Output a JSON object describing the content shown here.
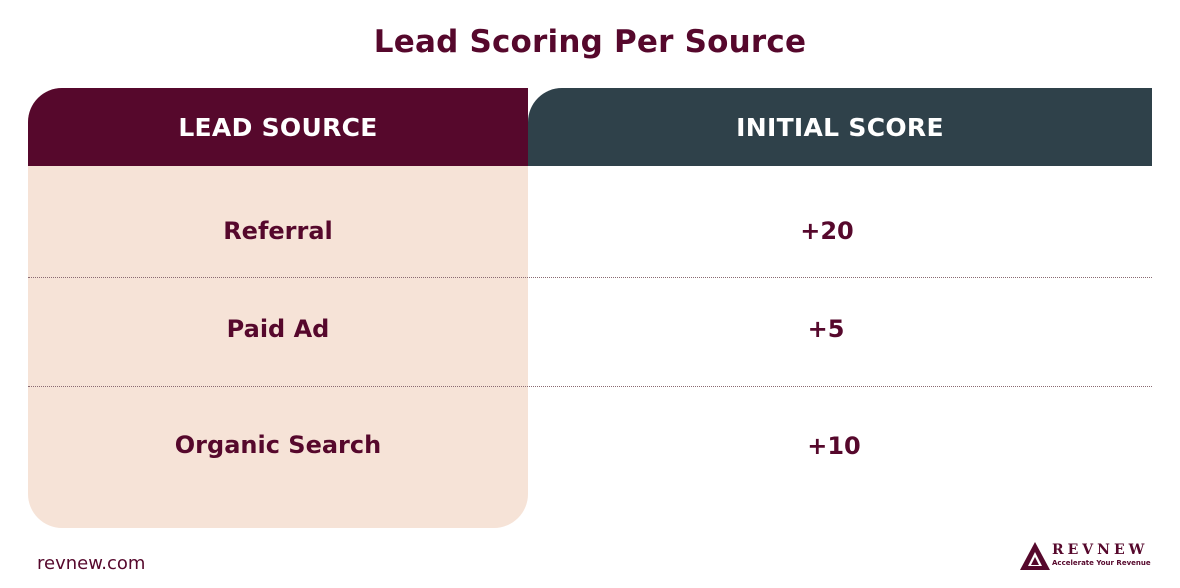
{
  "title": "Lead Scoring Per Source",
  "table": {
    "headers": {
      "source": "LEAD SOURCE",
      "score": "INITIAL SCORE"
    },
    "rows": [
      {
        "source": "Referral",
        "score": "+20"
      },
      {
        "source": "Paid Ad",
        "score": "+5"
      },
      {
        "source": "Organic Search",
        "score": "+10"
      }
    ]
  },
  "footer": {
    "url": "revnew.com",
    "logo_name": "REVNEW",
    "logo_tagline": "Accelerate Your Revenue",
    "logo_icon": "mountain-triangle-icon"
  },
  "colors": {
    "primary": "#56082c",
    "header_dark": "#2f414a",
    "cell_bg": "#f6e3d7"
  }
}
